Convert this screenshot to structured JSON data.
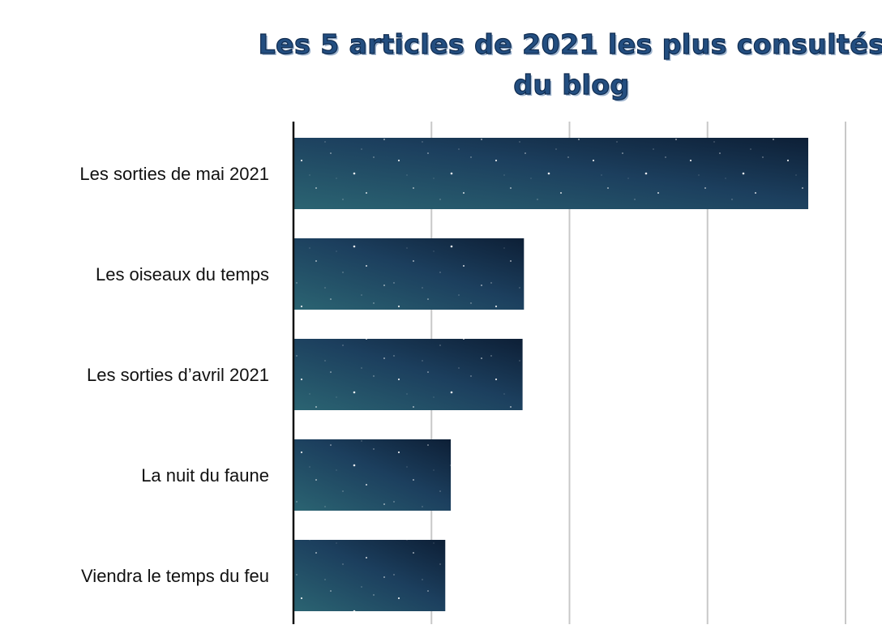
{
  "chart_data": {
    "type": "bar",
    "orientation": "horizontal",
    "title": "Les 5 articles de 2021 les plus consultés du blog",
    "categories": [
      "Les sorties de mai 2021",
      "Les oiseaux du temps",
      "Les sorties d’avril 2021",
      "La nuit du faune",
      "Viendra le temps du feu"
    ],
    "values": [
      373,
      167,
      166,
      114,
      110
    ],
    "xlim": [
      0,
      400
    ],
    "xticks": [
      0,
      100,
      200,
      300,
      400
    ],
    "tick_labels_visible": false,
    "grid": true,
    "xlabel": "",
    "ylabel": "",
    "colors": {
      "title": "#234e80",
      "bar_dark": "#0d1f36",
      "bar_mid": "#1c3f5e",
      "bar_light": "#2b6472",
      "grid": "#c8c8c8",
      "axis": "#111111"
    }
  }
}
